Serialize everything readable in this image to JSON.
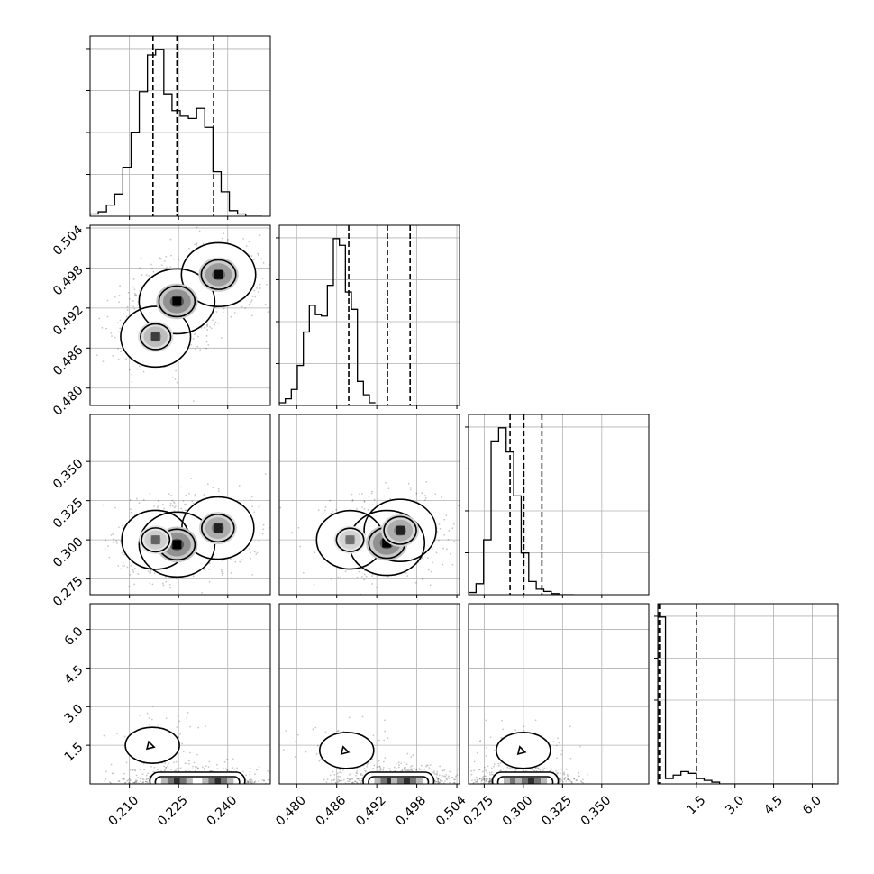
{
  "chart_data": {
    "type": "corner",
    "title": "",
    "grid": true,
    "parameters": [
      {
        "index": 0,
        "range": [
          0.198,
          0.253
        ],
        "ticks": [
          0.21,
          0.225,
          0.24
        ],
        "tick_labels": [
          "0.210",
          "0.225",
          "0.240"
        ]
      },
      {
        "index": 1,
        "range": [
          0.4774,
          0.5044
        ],
        "ticks": [
          0.48,
          0.486,
          0.492,
          0.498,
          0.504
        ],
        "tick_labels": [
          "0.480",
          "0.486",
          "0.492",
          "0.498",
          "0.504"
        ]
      },
      {
        "index": 2,
        "range": [
          0.265,
          0.38
        ],
        "ticks": [
          0.275,
          0.3,
          0.325,
          0.35
        ],
        "tick_labels": [
          "0.275",
          "0.300",
          "0.325",
          "0.350"
        ]
      },
      {
        "index": 3,
        "range": [
          0.0,
          7.0
        ],
        "ticks": [
          1.5,
          3.0,
          4.5,
          6.0
        ],
        "tick_labels": [
          "1.5",
          "3.0",
          "4.5",
          "6.0"
        ]
      }
    ],
    "histograms": [
      {
        "param": 0,
        "bin_start": 0.198,
        "bin_width": 0.0025,
        "counts": [
          2,
          4,
          10,
          20,
          44,
          75,
          112,
          145,
          150,
          110,
          95,
          90,
          88,
          97,
          80,
          40,
          22,
          5,
          2,
          0,
          0
        ],
        "quantiles": [
          0.2172,
          0.2245,
          0.2357
        ]
      },
      {
        "param": 1,
        "bin_start": 0.4774,
        "bin_width": 0.0009,
        "counts": [
          2,
          5,
          12,
          30,
          55,
          75,
          68,
          67,
          90,
          125,
          120,
          85,
          72,
          18,
          8,
          2
        ],
        "quantiles": [
          0.4878,
          0.4936,
          0.497
        ]
      },
      {
        "param": 2,
        "bin_start": 0.265,
        "bin_width": 0.0048,
        "counts": [
          2,
          10,
          50,
          140,
          152,
          130,
          90,
          38,
          12,
          5,
          3,
          1,
          0,
          0
        ],
        "quantiles": [
          0.2915,
          0.3003,
          0.3118
        ]
      },
      {
        "param": 3,
        "bin_start": 0.0,
        "bin_width": 0.3,
        "counts": [
          95,
          3,
          5,
          7,
          6,
          3,
          2,
          1,
          0,
          0,
          0,
          0,
          0,
          0,
          0,
          0,
          0,
          0,
          0,
          0,
          0,
          0,
          0
        ],
        "quantiles": [
          0.05,
          0.1,
          1.5
        ]
      }
    ],
    "density_modes": [
      {
        "params": [
          0,
          1
        ],
        "modes": [
          [
            0.2245,
            0.493,
            1.0
          ],
          [
            0.2372,
            0.497,
            0.9
          ],
          [
            0.218,
            0.4877,
            0.6
          ]
        ]
      },
      {
        "params": [
          0,
          2
        ],
        "modes": [
          [
            0.2245,
            0.297,
            1.0
          ],
          [
            0.237,
            0.3075,
            0.75
          ],
          [
            0.218,
            0.3,
            0.45
          ]
        ]
      },
      {
        "params": [
          1,
          2
        ],
        "modes": [
          [
            0.4935,
            0.298,
            1.0
          ],
          [
            0.4955,
            0.306,
            0.75
          ],
          [
            0.488,
            0.3,
            0.4
          ]
        ]
      },
      {
        "params": [
          0,
          3
        ],
        "modes": [
          [
            0.2245,
            0.05,
            1.0
          ],
          [
            0.237,
            0.05,
            0.85
          ],
          [
            0.217,
            1.5,
            0.2
          ]
        ]
      },
      {
        "params": [
          1,
          3
        ],
        "modes": [
          [
            0.494,
            0.05,
            1.0
          ],
          [
            0.4965,
            0.05,
            0.85
          ],
          [
            0.4875,
            1.3,
            0.2
          ]
        ]
      },
      {
        "params": [
          2,
          3
        ],
        "modes": [
          [
            0.2975,
            0.05,
            1.0
          ],
          [
            0.305,
            0.05,
            0.6
          ],
          [
            0.3,
            1.3,
            0.2
          ]
        ]
      }
    ]
  }
}
